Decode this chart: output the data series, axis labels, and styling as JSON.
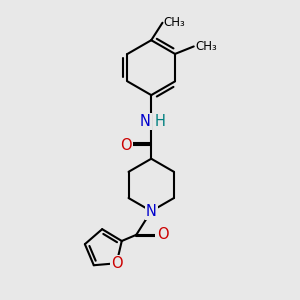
{
  "background_color": "#e8e8e8",
  "bond_color": "#000000",
  "bond_width": 1.5,
  "dbo": 0.018,
  "colors": {
    "N": "#0000cc",
    "O": "#cc0000",
    "H": "#008080",
    "C": "#000000"
  },
  "fs": 10.5
}
